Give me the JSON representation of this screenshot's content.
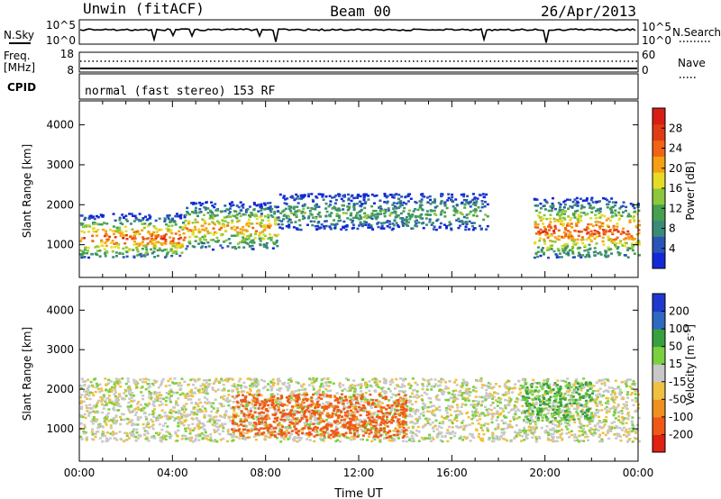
{
  "header": {
    "radar": "Unwin (fitACF)",
    "beam": "Beam 00",
    "date": "26/Apr/2013"
  },
  "noise_panel": {
    "left_label": "N.Sky",
    "right_label": "N.Search",
    "left_ticks": [
      "10^5",
      "10^0"
    ],
    "right_ticks": [
      "10^5",
      "10^0"
    ]
  },
  "freq_panel": {
    "left_label_line1": "Freq.",
    "left_label_line2": "[MHz]",
    "right_label": "Nave",
    "left_ticks": [
      "18",
      "8"
    ],
    "right_ticks": [
      "60",
      "0"
    ]
  },
  "cpid_panel": {
    "label": "CPID",
    "text": "normal (fast stereo) 153 RF"
  },
  "chart_data": [
    {
      "type": "heatmap",
      "title": "",
      "xlabel": "",
      "ylabel": "Slant Range [km]",
      "ylim": [
        180,
        4600
      ],
      "y_ticks": [
        "1000",
        "2000",
        "3000",
        "4000"
      ],
      "x_range_hours": [
        0,
        24
      ],
      "colorbar": {
        "label": "Power [dB]",
        "ticks": [
          "4",
          "8",
          "12",
          "16",
          "20",
          "24",
          "28"
        ],
        "range": [
          0,
          32
        ],
        "colors": [
          "#1228d8",
          "#2a55b8",
          "#3a8a78",
          "#46a050",
          "#8cc83c",
          "#e6dc28",
          "#f5a014",
          "#f06414",
          "#e03c14",
          "#d81e14"
        ]
      },
      "echo_regions_km_vs_hour": [
        {
          "from_hour": 0.0,
          "to_hour": 4.5,
          "range_km": [
            700,
            1800
          ],
          "peak_power_db": 26
        },
        {
          "from_hour": 4.5,
          "to_hour": 8.5,
          "range_km": [
            900,
            2100
          ],
          "peak_power_db": 22
        },
        {
          "from_hour": 8.5,
          "to_hour": 17.5,
          "range_km": [
            1400,
            2300
          ],
          "peak_power_db": 12
        },
        {
          "from_hour": 19.5,
          "to_hour": 24.0,
          "range_km": [
            700,
            2200
          ],
          "peak_power_db": 26
        }
      ]
    },
    {
      "type": "heatmap",
      "title": "",
      "xlabel": "Time UT",
      "ylabel": "Slant Range [km]",
      "ylim": [
        180,
        4600
      ],
      "y_ticks": [
        "1000",
        "2000",
        "3000",
        "4000"
      ],
      "x_ticks": [
        "00:00",
        "04:00",
        "08:00",
        "12:00",
        "16:00",
        "20:00",
        "00:00"
      ],
      "x_range_hours": [
        0,
        24
      ],
      "colorbar": {
        "label": "Velocity [m s",
        "label_sup": "-1",
        "label_end": "]",
        "ticks": [
          "200",
          "100",
          "50",
          "15",
          "-15",
          "-50",
          "-100",
          "-200"
        ],
        "colors": [
          "#2038d0",
          "#2e6ac0",
          "#38a040",
          "#7ad040",
          "#c8c8c8",
          "#f0c040",
          "#f09020",
          "#f05818",
          "#e02010"
        ]
      },
      "echo_regions_km_vs_hour": [
        {
          "from_hour": 0.0,
          "to_hour": 24.0,
          "range_km": [
            700,
            2300
          ],
          "velocity_ms": 0
        },
        {
          "from_hour": 6.5,
          "to_hour": 14.0,
          "range_km": [
            800,
            1900
          ],
          "velocity_ms": -120
        },
        {
          "from_hour": 19.0,
          "to_hour": 22.0,
          "range_km": [
            1200,
            2200
          ],
          "velocity_ms": 60
        }
      ]
    }
  ]
}
